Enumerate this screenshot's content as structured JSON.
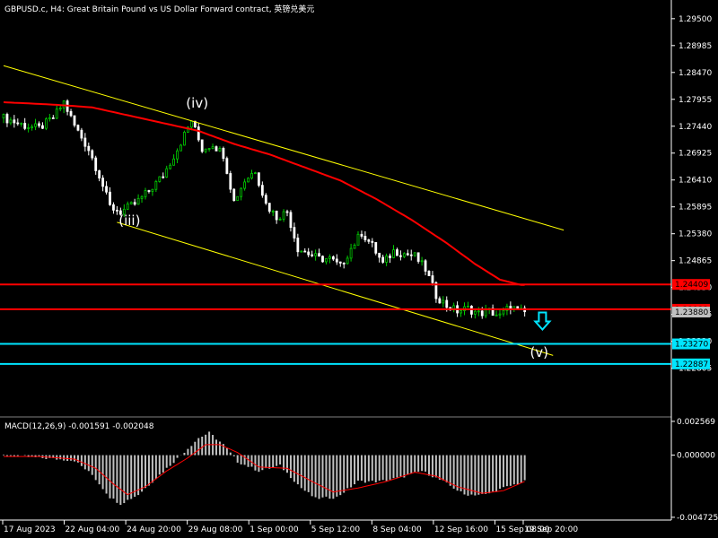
{
  "header": {
    "title": "GBPUSD.c, H4:  Great Britain Pound vs US Dollar Forward contract, 英镑兑美元"
  },
  "colors": {
    "background": "#000000",
    "bull_candle": "#00cc00",
    "bear_candle": "#ffffff",
    "moving_average": "#ff0000",
    "channel": "#ffff00",
    "resistance_line": "#ff0000",
    "support_line": "#00e5ff",
    "macd_histogram": "#c0c0c0",
    "macd_signal": "#ff0000"
  },
  "chart_data": [
    {
      "type": "candlestick",
      "symbol": "GBPUSD.c",
      "timeframe": "H4",
      "ylim": [
        1.223,
        1.296
      ],
      "y_ticks": [
        "1.29500",
        "1.28985",
        "1.28470",
        "1.27955",
        "1.27440",
        "1.26925",
        "1.26410",
        "1.25895",
        "1.25380",
        "1.24865",
        "1.24350",
        "1.23835",
        "1.23320",
        "1.22805"
      ],
      "x_ticks": [
        "17 Aug 2023",
        "22 Aug 04:00",
        "24 Aug 20:00",
        "29 Aug 08:00",
        "1 Sep 00:00",
        "5 Sep 12:00",
        "8 Sep 04:00",
        "12 Sep 16:00",
        "15 Sep 08:00",
        "19 Sep 20:00"
      ],
      "close_path": [
        [
          0,
          1.276
        ],
        [
          6,
          1.2745
        ],
        [
          10,
          1.274
        ],
        [
          14,
          1.276
        ],
        [
          17,
          1.279
        ],
        [
          20,
          1.2745
        ],
        [
          24,
          1.27
        ],
        [
          27,
          1.265
        ],
        [
          30,
          1.259
        ],
        [
          33,
          1.258
        ],
        [
          37,
          1.2595
        ],
        [
          41,
          1.262
        ],
        [
          45,
          1.265
        ],
        [
          49,
          1.27
        ],
        [
          53,
          1.2755
        ],
        [
          56,
          1.27
        ],
        [
          59,
          1.271
        ],
        [
          62,
          1.269
        ],
        [
          65,
          1.26
        ],
        [
          68,
          1.264
        ],
        [
          71,
          1.266
        ],
        [
          74,
          1.2595
        ],
        [
          77,
          1.257
        ],
        [
          80,
          1.258
        ],
        [
          83,
          1.251
        ],
        [
          86,
          1.25
        ],
        [
          89,
          1.249
        ],
        [
          92,
          1.249
        ],
        [
          95,
          1.2475
        ],
        [
          98,
          1.251
        ],
        [
          101,
          1.254
        ],
        [
          104,
          1.2515
        ],
        [
          107,
          1.248
        ],
        [
          110,
          1.2505
        ],
        [
          113,
          1.25
        ],
        [
          116,
          1.2495
        ],
        [
          119,
          1.247
        ],
        [
          122,
          1.242
        ],
        [
          125,
          1.24
        ],
        [
          128,
          1.239
        ],
        [
          131,
          1.2395
        ],
        [
          134,
          1.2385
        ],
        [
          137,
          1.239
        ],
        [
          140,
          1.238
        ],
        [
          143,
          1.24
        ],
        [
          145,
          1.239
        ],
        [
          147,
          1.2387
        ]
      ],
      "moving_average": [
        [
          0,
          1.279
        ],
        [
          15,
          1.2785
        ],
        [
          25,
          1.278
        ],
        [
          35,
          1.2765
        ],
        [
          45,
          1.275
        ],
        [
          55,
          1.2735
        ],
        [
          65,
          1.271
        ],
        [
          75,
          1.269
        ],
        [
          85,
          1.2665
        ],
        [
          95,
          1.264
        ],
        [
          105,
          1.2605
        ],
        [
          115,
          1.2565
        ],
        [
          125,
          1.252
        ],
        [
          133,
          1.248
        ],
        [
          140,
          1.245
        ],
        [
          146,
          1.244
        ]
      ],
      "channel_upper": [
        [
          0,
          1.286
        ],
        [
          158,
          1.2545
        ]
      ],
      "channel_lower": [
        [
          32,
          1.256
        ],
        [
          155,
          1.2305
        ]
      ],
      "horizontal_lines": [
        {
          "label": "1.24409",
          "value": 1.24409,
          "color": "#ff0000"
        },
        {
          "label": "1.23933",
          "value": 1.23933,
          "color": "#ff0000"
        },
        {
          "label": "1.23270",
          "value": 1.2327,
          "color": "#00e5ff"
        },
        {
          "label": "1.22887",
          "value": 1.22887,
          "color": "#00e5ff"
        }
      ],
      "current_price": {
        "label": "1.23880",
        "value": 1.2388
      },
      "wave_labels": [
        {
          "text": "(iv)",
          "x": 54,
          "value": 1.278
        },
        {
          "text": "(iii)",
          "x": 35,
          "value": 1.2555
        },
        {
          "text": "(v)",
          "x": 151,
          "value": 1.2302
        }
      ],
      "forecast_arrow": {
        "x": 152,
        "value": 1.237,
        "direction": "down",
        "color": "#00e5ff"
      }
    },
    {
      "type": "histogram",
      "indicator_label": "MACD(12,26,9) -0.001591 -0.002048",
      "ylim": [
        -0.0048,
        0.0027
      ],
      "y_ticks": [
        "0.002569",
        "0.000000",
        "-0.004725"
      ],
      "histogram": [
        [
          0,
          0.0
        ],
        [
          10,
          -0.0002
        ],
        [
          20,
          -0.0004
        ],
        [
          25,
          -0.0015
        ],
        [
          30,
          -0.0032
        ],
        [
          33,
          -0.0037
        ],
        [
          38,
          -0.003
        ],
        [
          44,
          -0.0015
        ],
        [
          50,
          0.0
        ],
        [
          55,
          0.0013
        ],
        [
          58,
          0.0017
        ],
        [
          62,
          0.0008
        ],
        [
          66,
          -0.0005
        ],
        [
          72,
          -0.0012
        ],
        [
          78,
          -0.0008
        ],
        [
          84,
          -0.0025
        ],
        [
          88,
          -0.0033
        ],
        [
          94,
          -0.0032
        ],
        [
          100,
          -0.002
        ],
        [
          106,
          -0.002
        ],
        [
          112,
          -0.0017
        ],
        [
          118,
          -0.0012
        ],
        [
          124,
          -0.002
        ],
        [
          130,
          -0.003
        ],
        [
          136,
          -0.003
        ],
        [
          141,
          -0.0025
        ],
        [
          147,
          -0.002
        ]
      ],
      "signal": [
        [
          0,
          -0.0001
        ],
        [
          10,
          -0.0001
        ],
        [
          20,
          -0.0003
        ],
        [
          26,
          -0.001
        ],
        [
          31,
          -0.0022
        ],
        [
          35,
          -0.003
        ],
        [
          40,
          -0.0024
        ],
        [
          46,
          -0.0012
        ],
        [
          52,
          -0.0002
        ],
        [
          57,
          0.0008
        ],
        [
          61,
          0.0008
        ],
        [
          66,
          0.0002
        ],
        [
          72,
          -0.0009
        ],
        [
          80,
          -0.001
        ],
        [
          87,
          -0.002
        ],
        [
          93,
          -0.0028
        ],
        [
          100,
          -0.0025
        ],
        [
          108,
          -0.002
        ],
        [
          116,
          -0.0013
        ],
        [
          122,
          -0.0016
        ],
        [
          128,
          -0.0024
        ],
        [
          135,
          -0.0029
        ],
        [
          141,
          -0.0027
        ],
        [
          147,
          -0.002
        ]
      ]
    }
  ]
}
